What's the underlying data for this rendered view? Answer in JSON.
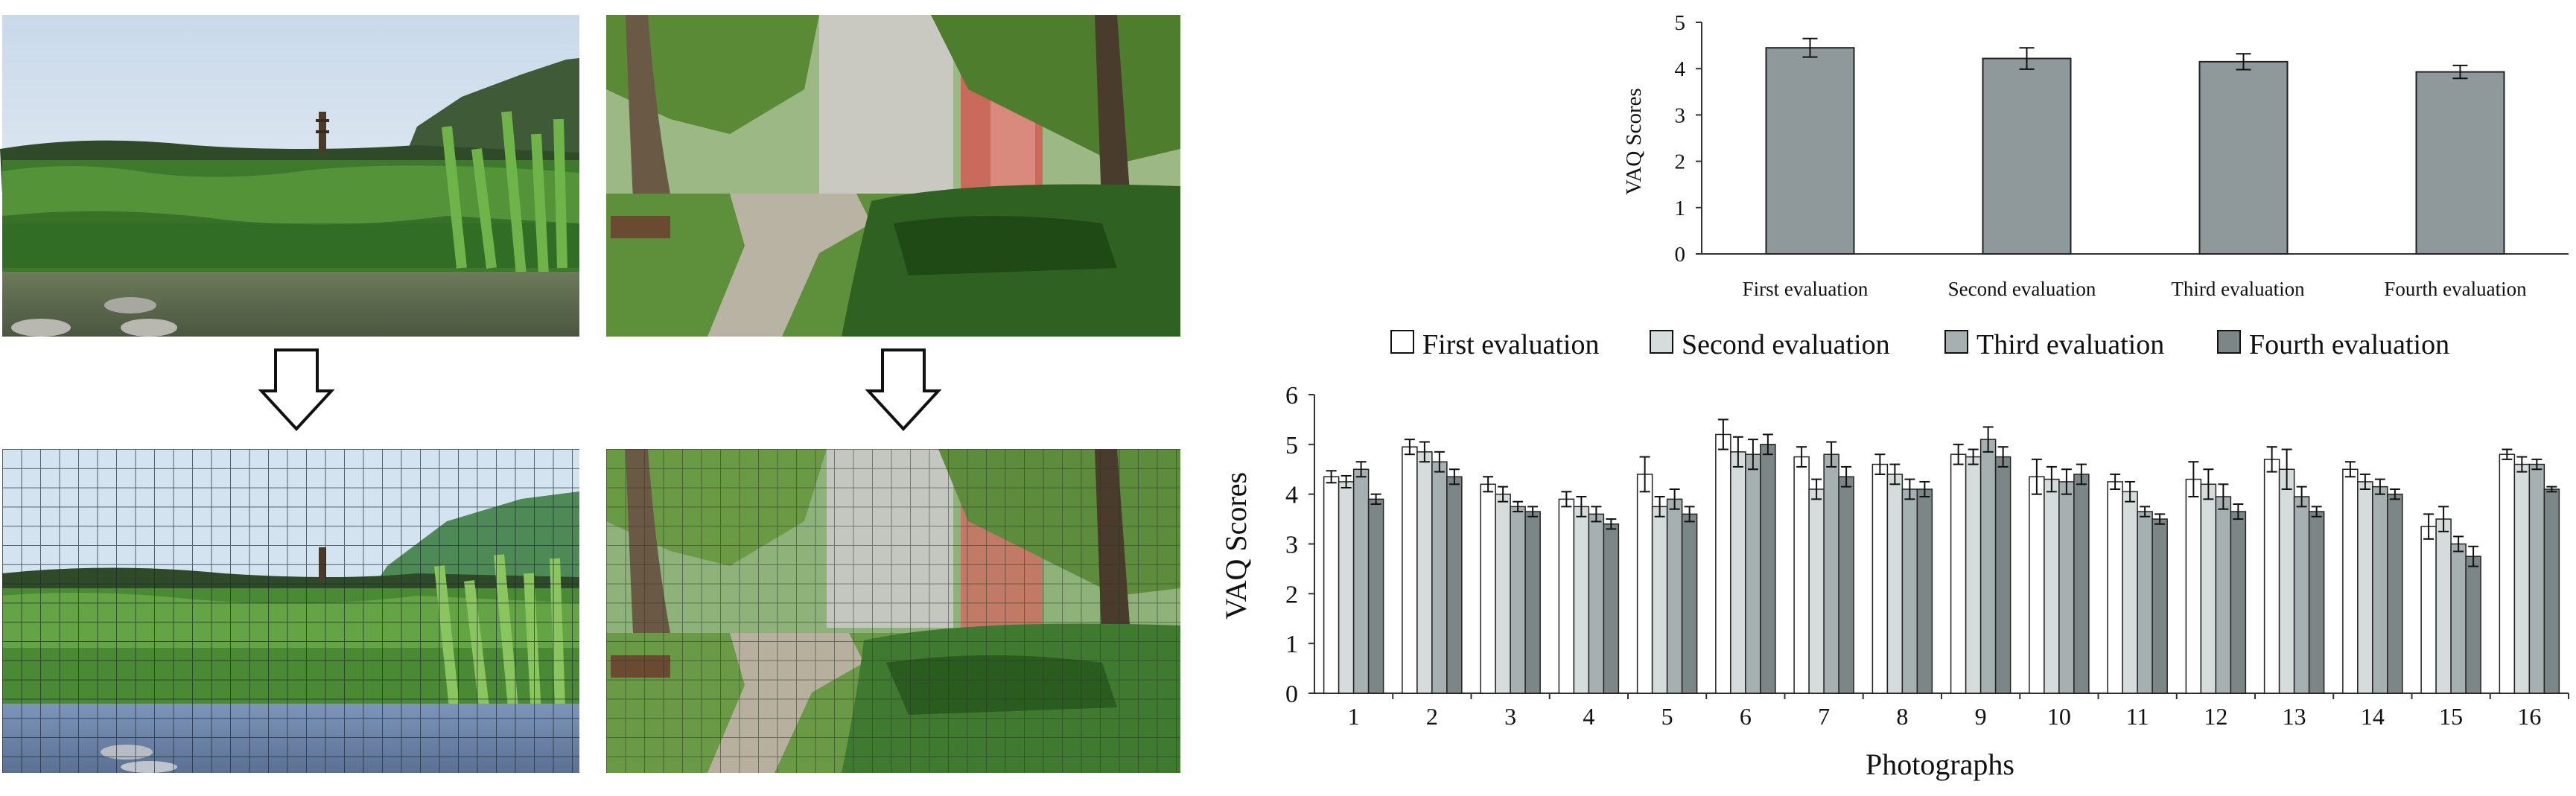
{
  "photos": [
    {
      "scene": "lotus-pond-with-pagoda-and-hills"
    },
    {
      "scene": "garden-path-under-trees-with-buildings"
    }
  ],
  "chart_data": [
    {
      "type": "bar",
      "title": "",
      "xlabel": "",
      "ylabel": "VAQ Scores",
      "ylim": [
        0,
        5
      ],
      "yticks": [
        0,
        1,
        2,
        3,
        4,
        5
      ],
      "grid": false,
      "categories": [
        "First evaluation",
        "Second evaluation",
        "Third evaluation",
        "Fourth evaluation"
      ],
      "values": [
        4.45,
        4.22,
        4.15,
        3.93
      ],
      "errors": [
        0.2,
        0.23,
        0.17,
        0.14
      ],
      "bar_color": "#8f999b"
    },
    {
      "type": "bar",
      "title": "",
      "xlabel": "Photographs",
      "ylabel": "VAQ Scores",
      "ylim": [
        0,
        6
      ],
      "yticks": [
        0,
        1,
        2,
        3,
        4,
        5,
        6
      ],
      "grid": false,
      "legend": "top",
      "categories": [
        "1",
        "2",
        "3",
        "4",
        "5",
        "6",
        "7",
        "8",
        "9",
        "10",
        "11",
        "12",
        "13",
        "14",
        "15",
        "16"
      ],
      "series": [
        {
          "name": "First evaluation",
          "color": "#ffffff",
          "values": [
            4.35,
            4.95,
            4.2,
            3.9,
            4.4,
            5.2,
            4.75,
            4.6,
            4.8,
            4.35,
            4.25,
            4.3,
            4.7,
            4.5,
            3.35,
            4.8
          ],
          "errors": [
            0.12,
            0.15,
            0.15,
            0.15,
            0.35,
            0.3,
            0.2,
            0.2,
            0.2,
            0.35,
            0.15,
            0.35,
            0.25,
            0.15,
            0.25,
            0.1
          ]
        },
        {
          "name": "Second evaluation",
          "color": "#d5dcdb",
          "values": [
            4.25,
            4.85,
            4.0,
            3.75,
            3.75,
            4.85,
            4.1,
            4.4,
            4.75,
            4.3,
            4.05,
            4.2,
            4.5,
            4.25,
            3.5,
            4.6
          ],
          "errors": [
            0.12,
            0.2,
            0.15,
            0.2,
            0.2,
            0.3,
            0.2,
            0.2,
            0.15,
            0.25,
            0.2,
            0.3,
            0.4,
            0.15,
            0.25,
            0.15
          ]
        },
        {
          "name": "Third evaluation",
          "color": "#a7b0b0",
          "values": [
            4.5,
            4.65,
            3.75,
            3.6,
            3.9,
            4.8,
            4.8,
            4.1,
            5.1,
            4.25,
            3.65,
            3.95,
            3.95,
            4.15,
            3.0,
            4.6
          ],
          "errors": [
            0.15,
            0.2,
            0.1,
            0.15,
            0.2,
            0.3,
            0.25,
            0.2,
            0.25,
            0.25,
            0.1,
            0.25,
            0.2,
            0.15,
            0.15,
            0.1
          ]
        },
        {
          "name": "Fourth evaluation",
          "color": "#7c8686",
          "values": [
            3.9,
            4.35,
            3.65,
            3.4,
            3.6,
            5.0,
            4.35,
            4.1,
            4.75,
            4.4,
            3.5,
            3.65,
            3.65,
            4.0,
            2.75,
            4.1
          ],
          "errors": [
            0.1,
            0.15,
            0.1,
            0.1,
            0.15,
            0.2,
            0.2,
            0.15,
            0.2,
            0.2,
            0.1,
            0.15,
            0.1,
            0.1,
            0.2,
            0.05
          ]
        }
      ]
    }
  ]
}
